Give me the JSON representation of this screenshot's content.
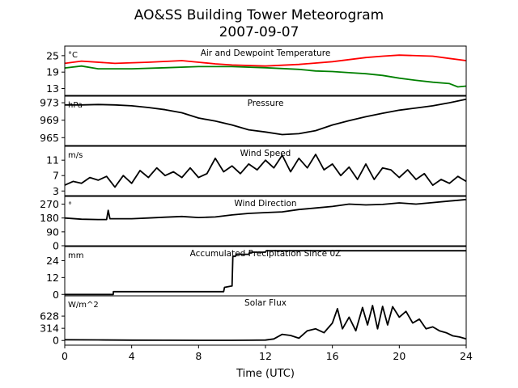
{
  "title_line1": "AO&SS Building Tower Meteorogram",
  "title_line2": "2007-09-07",
  "xlabel": "Time (UTC)",
  "x_ticks": [
    "0",
    "4",
    "8",
    "12",
    "16",
    "20",
    "24"
  ],
  "colors": {
    "air_temp": "#ff0000",
    "dewpoint": "#008000",
    "line": "#000000"
  },
  "panels": [
    {
      "title": "Air and Dewpoint Temperature",
      "unit": "°C",
      "ticks": [
        "25",
        "19",
        "13"
      ]
    },
    {
      "title": "Pressure",
      "unit": "hPa",
      "ticks": [
        "973",
        "969",
        "965"
      ]
    },
    {
      "title": "Wind Speed",
      "unit": "m/s",
      "ticks": [
        "11",
        "7",
        "3"
      ]
    },
    {
      "title": "Wind Direction",
      "unit": "°",
      "ticks": [
        "270",
        "180",
        "90",
        "0"
      ]
    },
    {
      "title": "Accumulated Precipitation Since 0Z",
      "unit": "mm",
      "ticks": [
        "24",
        "12",
        "0"
      ]
    },
    {
      "title": "Solar Flux",
      "unit": "W/m^2",
      "ticks": [
        "628",
        "314",
        "0"
      ]
    }
  ],
  "chart_data": [
    {
      "type": "line",
      "title": "Air and Dewpoint Temperature",
      "ylabel": "°C",
      "xlim": [
        0,
        24
      ],
      "ylim": [
        10.5,
        28.5
      ],
      "yticks": [
        13,
        19,
        25
      ],
      "series": [
        {
          "x": [
            0,
            1,
            3,
            5,
            7,
            8,
            9,
            10,
            12,
            14,
            16,
            18,
            19,
            20,
            22,
            23,
            24
          ],
          "values": [
            22.2,
            23,
            22.2,
            22.6,
            23.2,
            22.6,
            22,
            21.6,
            21.2,
            21.8,
            22.8,
            24.3,
            24.8,
            25.2,
            24.8,
            24,
            23.2
          ]
        },
        {
          "x": [
            0,
            1,
            2,
            4,
            6,
            8,
            10,
            12,
            14,
            15,
            16,
            17,
            18,
            19,
            20,
            21,
            22,
            23,
            23.5,
            24
          ],
          "values": [
            20.5,
            21.2,
            20.2,
            20.2,
            20.6,
            21,
            21,
            20.6,
            20,
            19.4,
            19.2,
            18.8,
            18.4,
            17.8,
            16.8,
            16,
            15.3,
            14.8,
            13.6,
            13.9
          ]
        }
      ]
    },
    {
      "type": "line",
      "title": "Pressure",
      "ylabel": "hPa",
      "xlim": [
        0,
        24
      ],
      "ylim": [
        963.2,
        974.5
      ],
      "yticks": [
        965,
        969,
        973
      ],
      "series": [
        {
          "x": [
            0,
            1,
            2,
            3,
            4,
            5,
            6,
            7,
            8,
            9,
            10,
            11,
            12,
            13,
            14,
            15,
            16,
            17,
            18,
            19,
            20,
            21,
            22,
            23,
            24
          ],
          "values": [
            972.5,
            972.5,
            972.6,
            972.5,
            972.3,
            971.9,
            971.4,
            970.7,
            969.5,
            968.8,
            967.9,
            966.8,
            966.3,
            965.7,
            965.9,
            966.6,
            967.9,
            968.9,
            969.8,
            970.6,
            971.3,
            971.8,
            972.3,
            973.0,
            973.8
          ]
        }
      ]
    },
    {
      "type": "line",
      "title": "Wind Speed",
      "ylabel": "m/s",
      "xlim": [
        0,
        24
      ],
      "ylim": [
        1.8,
        14.6
      ],
      "yticks": [
        3,
        7,
        11
      ],
      "series": [
        {
          "x": [
            0,
            0.5,
            1,
            1.5,
            2,
            2.5,
            3,
            3.5,
            4,
            4.5,
            5,
            5.5,
            6,
            6.5,
            7,
            7.5,
            8,
            8.5,
            9,
            9.5,
            10,
            10.5,
            11,
            11.5,
            12,
            12.5,
            13,
            13.5,
            14,
            14.5,
            15,
            15.5,
            16,
            16.5,
            17,
            17.5,
            18,
            18.5,
            19,
            19.5,
            20,
            20.5,
            21,
            21.5,
            22,
            22.5,
            23,
            23.5,
            24
          ],
          "values": [
            4.5,
            5.5,
            5,
            6.5,
            5.8,
            6.8,
            4,
            7,
            5,
            8.3,
            6.5,
            9,
            7,
            8,
            6.5,
            9,
            6.5,
            7.5,
            11.5,
            8,
            9.5,
            7.5,
            10,
            8.5,
            11,
            9,
            12.3,
            8,
            11.5,
            9,
            12.5,
            8.5,
            10,
            7,
            9.2,
            6,
            10,
            6,
            9,
            8.5,
            6.5,
            8.5,
            6,
            7.5,
            4.5,
            6,
            5,
            6.8,
            5.5
          ]
        }
      ]
    },
    {
      "type": "line",
      "title": "Wind Direction",
      "ylabel": "°",
      "xlim": [
        0,
        24
      ],
      "ylim": [
        0,
        320
      ],
      "yticks": [
        0,
        90,
        180,
        270
      ],
      "series": [
        {
          "x": [
            0,
            1,
            2,
            2.5,
            2.6,
            2.7,
            3,
            4,
            5,
            6,
            7,
            8,
            9,
            10,
            11,
            12,
            13,
            14,
            15,
            16,
            17,
            18,
            19,
            20,
            21,
            22,
            23,
            23.5,
            24
          ],
          "values": [
            180,
            172,
            170,
            170,
            230,
            175,
            175,
            175,
            180,
            185,
            190,
            183,
            187,
            200,
            210,
            215,
            220,
            235,
            245,
            255,
            270,
            265,
            268,
            278,
            270,
            280,
            290,
            295,
            300
          ]
        }
      ]
    },
    {
      "type": "line",
      "title": "Accumulated Precipitation Since 0Z",
      "ylabel": "mm",
      "xlim": [
        0,
        24
      ],
      "ylim": [
        -1,
        34
      ],
      "yticks": [
        0,
        12,
        24
      ],
      "series": [
        {
          "x": [
            0,
            2.9,
            2.91,
            9.5,
            9.55,
            10.0,
            10.05,
            10.2,
            10.25,
            11.0,
            11.05,
            12.0,
            12.05,
            24
          ],
          "values": [
            0,
            0,
            2,
            2,
            5,
            6,
            27,
            27,
            28.5,
            28.5,
            30,
            30,
            31,
            31
          ]
        }
      ]
    },
    {
      "type": "line",
      "title": "Solar Flux",
      "ylabel": "W/m^2",
      "xlim": [
        0,
        24
      ],
      "ylim": [
        -120,
        1150
      ],
      "yticks": [
        0,
        314,
        628
      ],
      "series": [
        {
          "x": [
            0,
            2,
            4,
            6,
            8,
            10,
            11,
            12,
            12.5,
            13,
            13.5,
            14,
            14.5,
            15,
            15.5,
            16,
            16.3,
            16.6,
            17,
            17.4,
            17.8,
            18.1,
            18.4,
            18.7,
            19,
            19.3,
            19.6,
            20,
            20.4,
            20.8,
            21.2,
            21.6,
            22,
            22.4,
            22.8,
            23.2,
            23.6,
            24
          ],
          "values": [
            20,
            15,
            10,
            8,
            5,
            5,
            8,
            12,
            40,
            160,
            130,
            60,
            250,
            300,
            200,
            450,
            820,
            300,
            600,
            250,
            850,
            400,
            900,
            300,
            880,
            400,
            870,
            600,
            750,
            450,
            550,
            300,
            350,
            250,
            200,
            120,
            90,
            40
          ]
        }
      ]
    }
  ]
}
